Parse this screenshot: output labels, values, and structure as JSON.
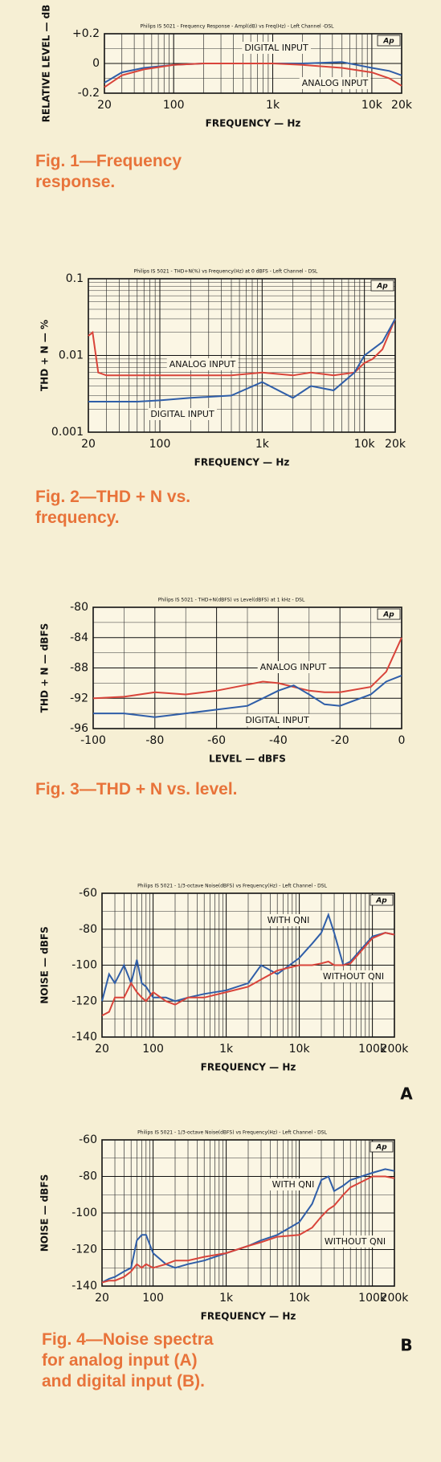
{
  "chart_data": [
    {
      "type": "line",
      "header": "Philips IS 5021 - Frequency Response - Ampl(dB) vs Freq(Hz) - Left Channel -DSL",
      "logo": "Ap",
      "caption": "Fig. 1—Frequency response.",
      "x_label": "FREQUENCY — Hz",
      "y_label": "RELATIVE LEVEL — dB",
      "x_log": true,
      "y_log": false,
      "grid": true,
      "xlim": [
        20,
        20000
      ],
      "xticks": [
        20,
        100,
        {
          "value": 1000,
          "label": "1k"
        },
        {
          "value": 10000,
          "label": "10k"
        },
        {
          "value": 20000,
          "label": "20k"
        }
      ],
      "ylim": [
        -0.2,
        0.2
      ],
      "yticks": [
        -0.2,
        0,
        {
          "value": 0.2,
          "label": "+0.2"
        }
      ],
      "x": [
        20,
        30,
        50,
        100,
        200,
        500,
        1000,
        2000,
        5000,
        10000,
        15000,
        20000
      ],
      "series": [
        {
          "name": "DIGITAL INPUT",
          "color": "#2f5ea8",
          "values": [
            -0.13,
            -0.06,
            -0.03,
            -0.01,
            0,
            0,
            0,
            0,
            0.01,
            -0.03,
            -0.05,
            -0.08
          ]
        },
        {
          "name": "ANALOG INPUT",
          "color": "#d9443a",
          "values": [
            -0.16,
            -0.08,
            -0.04,
            -0.01,
            0,
            0,
            0,
            -0.01,
            -0.03,
            -0.06,
            -0.1,
            -0.15
          ]
        }
      ]
    },
    {
      "type": "line",
      "header": "Philips IS 5021 - THD+N(%) vs Frequency(Hz) at 0 dBFS - Left Channel - DSL",
      "logo": "Ap",
      "caption": "Fig. 2—THD + N vs. frequency.",
      "x_label": "FREQUENCY — Hz",
      "y_label": "THD + N — %",
      "x_log": true,
      "y_log": true,
      "grid": true,
      "xlim": [
        20,
        20000
      ],
      "xticks": [
        20,
        100,
        {
          "value": 1000,
          "label": "1k"
        },
        {
          "value": 10000,
          "label": "10k"
        },
        {
          "value": 20000,
          "label": "20k"
        }
      ],
      "ylim": [
        0.001,
        0.1
      ],
      "yticks": [
        0.001,
        0.01,
        0.1
      ],
      "x": [
        20,
        22,
        25,
        30,
        40,
        60,
        100,
        200,
        500,
        1000,
        2000,
        3000,
        5000,
        8000,
        10000,
        12000,
        15000,
        20000
      ],
      "series": [
        {
          "name": "ANALOG INPUT",
          "color": "#d9443a",
          "values": [
            0.018,
            0.02,
            0.006,
            0.0055,
            0.0055,
            0.0055,
            0.0055,
            0.0055,
            0.0055,
            0.006,
            0.0055,
            0.006,
            0.0055,
            0.006,
            0.008,
            0.009,
            0.012,
            0.03
          ]
        },
        {
          "name": "DIGITAL INPUT",
          "color": "#2f5ea8",
          "values": [
            0.0025,
            0.0025,
            0.0025,
            0.0025,
            0.0025,
            0.0025,
            0.0026,
            0.0028,
            0.003,
            0.0045,
            0.0028,
            0.004,
            0.0035,
            0.006,
            0.01,
            0.012,
            0.015,
            0.03
          ]
        }
      ]
    },
    {
      "type": "line",
      "header": "Philips IS 5021 - THD+N(dBFS) vs Level(dBFS) at 1 kHz - DSL",
      "logo": "Ap",
      "caption": "Fig. 3—THD + N vs. level.",
      "x_label": "LEVEL — dBFS",
      "y_label": "THD + N — dBFS",
      "x_log": false,
      "y_log": false,
      "grid": true,
      "xlim": [
        -100,
        0
      ],
      "xticks": [
        -100,
        -80,
        -60,
        -40,
        -20,
        0
      ],
      "ylim": [
        -96,
        -80
      ],
      "yticks": [
        -96,
        -92,
        -88,
        -84,
        -80
      ],
      "x": [
        -100,
        -90,
        -80,
        -70,
        -60,
        -50,
        -45,
        -40,
        -35,
        -30,
        -25,
        -20,
        -10,
        -5,
        0
      ],
      "series": [
        {
          "name": "ANALOG INPUT",
          "color": "#d9443a",
          "values": [
            -92,
            -91.8,
            -91.2,
            -91.5,
            -91,
            -90.2,
            -89.8,
            -90,
            -90.5,
            -91,
            -91.2,
            -91.2,
            -90.5,
            -88.5,
            -84
          ]
        },
        {
          "name": "DIGITAL INPUT",
          "color": "#2f5ea8",
          "values": [
            -94,
            -94,
            -94.5,
            -94,
            -93.5,
            -93,
            -92,
            -91,
            -90.3,
            -91.5,
            -92.8,
            -93,
            -91.5,
            -89.8,
            -89
          ]
        }
      ]
    },
    {
      "type": "line",
      "header": "Philips IS 5021 - 1/3-octave Noise(dBFS) vs Frequency(Hz) - Left Channel - DSL",
      "logo": "Ap",
      "panel": "A",
      "x_label": "FREQUENCY — Hz",
      "y_label": "NOISE — dBFS",
      "x_log": true,
      "y_log": false,
      "grid": true,
      "xlim": [
        20,
        200000
      ],
      "xticks": [
        20,
        100,
        {
          "value": 1000,
          "label": "1k"
        },
        {
          "value": 10000,
          "label": "10k"
        },
        {
          "value": 100000,
          "label": "100k"
        },
        {
          "value": 200000,
          "label": "200k"
        }
      ],
      "ylim": [
        -140,
        -60
      ],
      "yticks": [
        -140,
        -120,
        -100,
        -80,
        -60
      ],
      "x": [
        20,
        25,
        30,
        40,
        50,
        60,
        70,
        80,
        100,
        150,
        200,
        300,
        500,
        1000,
        2000,
        3000,
        5000,
        10000,
        15000,
        20000,
        25000,
        30000,
        40000,
        50000,
        100000,
        150000,
        200000
      ],
      "series": [
        {
          "name": "WITH QNI",
          "color": "#2f5ea8",
          "values": [
            -120,
            -105,
            -110,
            -100,
            -110,
            -97,
            -110,
            -112,
            -118,
            -118,
            -120,
            -118,
            -116,
            -114,
            -110,
            -100,
            -105,
            -96,
            -88,
            -82,
            -72,
            -82,
            -100,
            -98,
            -84,
            -82,
            -83
          ]
        },
        {
          "name": "WITHOUT QNI",
          "color": "#d9443a",
          "values": [
            -128,
            -126,
            -118,
            -118,
            -110,
            -115,
            -118,
            -120,
            -115,
            -120,
            -122,
            -118,
            -118,
            -115,
            -112,
            -108,
            -103,
            -100,
            -100,
            -99,
            -98,
            -100,
            -100,
            -99,
            -85,
            -82,
            -83
          ]
        }
      ]
    },
    {
      "type": "line",
      "header": "Philips IS 5021 - 1/3-octave Noise(dBFS) vs Frequency(Hz) - Left Channel - DSL",
      "logo": "Ap",
      "panel": "B",
      "caption": "Fig. 4—Noise spectra for analog input (A) and digital input (B).",
      "x_label": "FREQUENCY — Hz",
      "y_label": "NOISE — dBFS",
      "x_log": true,
      "y_log": false,
      "grid": true,
      "xlim": [
        20,
        200000
      ],
      "xticks": [
        20,
        100,
        {
          "value": 1000,
          "label": "1k"
        },
        {
          "value": 10000,
          "label": "10k"
        },
        {
          "value": 100000,
          "label": "100k"
        },
        {
          "value": 200000,
          "label": "200k"
        }
      ],
      "ylim": [
        -140,
        -60
      ],
      "yticks": [
        -140,
        -120,
        -100,
        -80,
        -60
      ],
      "x": [
        20,
        25,
        30,
        40,
        50,
        60,
        70,
        80,
        100,
        150,
        200,
        300,
        500,
        1000,
        2000,
        3000,
        5000,
        10000,
        15000,
        20000,
        25000,
        30000,
        40000,
        50000,
        100000,
        150000,
        200000
      ],
      "series": [
        {
          "name": "WITH QNI",
          "color": "#2f5ea8",
          "values": [
            -138,
            -136,
            -135,
            -132,
            -130,
            -115,
            -112,
            -112,
            -122,
            -128,
            -130,
            -128,
            -126,
            -122,
            -118,
            -115,
            -112,
            -105,
            -95,
            -82,
            -80,
            -88,
            -85,
            -82,
            -78,
            -76,
            -77
          ]
        },
        {
          "name": "WITHOUT QNI",
          "color": "#d9443a",
          "values": [
            -138,
            -137,
            -137,
            -135,
            -132,
            -128,
            -130,
            -128,
            -130,
            -128,
            -126,
            -126,
            -124,
            -122,
            -118,
            -116,
            -113,
            -112,
            -108,
            -102,
            -98,
            -96,
            -90,
            -86,
            -80,
            -80,
            -81
          ]
        }
      ]
    }
  ]
}
